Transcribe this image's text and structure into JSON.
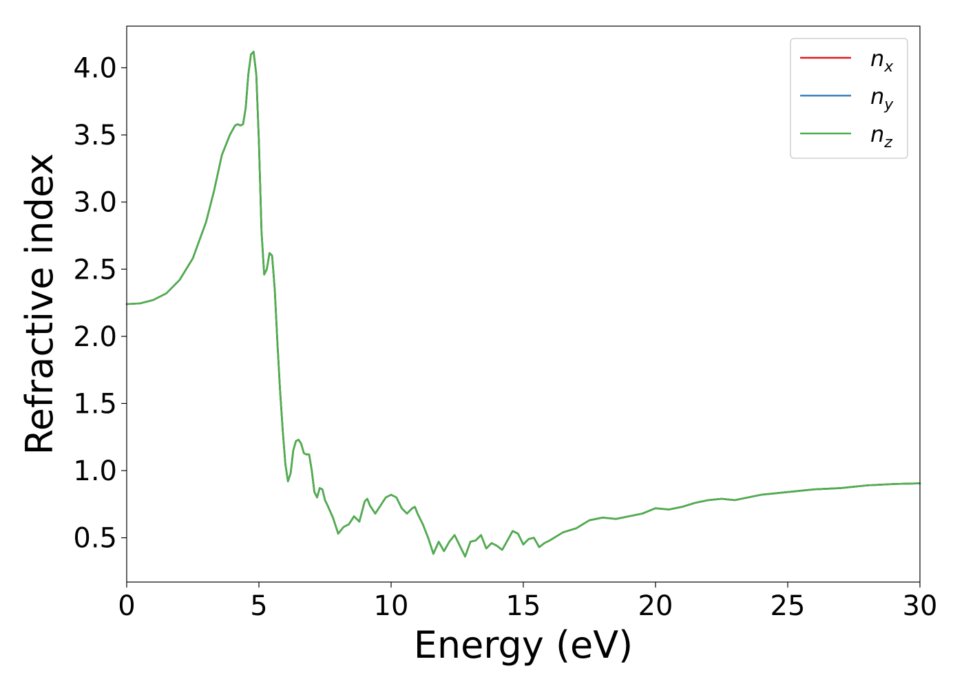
{
  "chart_data": {
    "type": "line",
    "xlabel": "Energy (eV)",
    "ylabel": "Refractive index",
    "xlim": [
      0,
      30
    ],
    "ylim": [
      0.17,
      4.31
    ],
    "xticks": [
      0,
      5,
      10,
      15,
      20,
      25,
      30
    ],
    "xtick_labels": [
      "0",
      "5",
      "10",
      "15",
      "20",
      "25",
      "30"
    ],
    "yticks": [
      0.5,
      1.0,
      1.5,
      2.0,
      2.5,
      3.0,
      3.5,
      4.0
    ],
    "ytick_labels": [
      "0.5",
      "1.0",
      "1.5",
      "2.0",
      "2.5",
      "3.0",
      "3.5",
      "4.0"
    ],
    "grid": false,
    "legend_position": "top-right",
    "series": [
      {
        "name": "n_x",
        "label_base": "n",
        "label_sub": "x",
        "color": "#e41a1c",
        "x": [
          0,
          0.5,
          1.0,
          1.5,
          2.0,
          2.5,
          3.0,
          3.3,
          3.6,
          3.9,
          4.1,
          4.2,
          4.3,
          4.4,
          4.5,
          4.6,
          4.7,
          4.8,
          4.9,
          5.0,
          5.1,
          5.2,
          5.3,
          5.4,
          5.5,
          5.6,
          5.7,
          5.8,
          5.9,
          6.0,
          6.1,
          6.2,
          6.3,
          6.4,
          6.5,
          6.6,
          6.7,
          6.8,
          6.9,
          7.0,
          7.1,
          7.2,
          7.3,
          7.4,
          7.5,
          7.6,
          7.8,
          8.0,
          8.2,
          8.4,
          8.6,
          8.8,
          9.0,
          9.1,
          9.2,
          9.4,
          9.6,
          9.8,
          10.0,
          10.2,
          10.4,
          10.6,
          10.8,
          10.9,
          11.0,
          11.2,
          11.4,
          11.6,
          11.8,
          12.0,
          12.2,
          12.4,
          12.6,
          12.8,
          13.0,
          13.2,
          13.4,
          13.6,
          13.8,
          14.0,
          14.2,
          14.4,
          14.6,
          14.8,
          15.0,
          15.2,
          15.4,
          15.6,
          15.8,
          16.0,
          16.5,
          17.0,
          17.5,
          18.0,
          18.5,
          19.0,
          19.5,
          20.0,
          20.5,
          21.0,
          21.5,
          22.0,
          22.5,
          23.0,
          23.5,
          24.0,
          25.0,
          26.0,
          27.0,
          28.0,
          29.0,
          30.0
        ],
        "y": [
          2.24,
          2.245,
          2.27,
          2.32,
          2.42,
          2.58,
          2.85,
          3.08,
          3.35,
          3.5,
          3.57,
          3.58,
          3.57,
          3.58,
          3.7,
          3.95,
          4.1,
          4.12,
          3.95,
          3.45,
          2.78,
          2.46,
          2.5,
          2.62,
          2.6,
          2.35,
          1.95,
          1.6,
          1.3,
          1.05,
          0.92,
          0.98,
          1.15,
          1.22,
          1.23,
          1.2,
          1.13,
          1.12,
          1.12,
          1.0,
          0.84,
          0.8,
          0.87,
          0.86,
          0.78,
          0.74,
          0.65,
          0.53,
          0.58,
          0.6,
          0.66,
          0.62,
          0.77,
          0.79,
          0.74,
          0.68,
          0.74,
          0.8,
          0.82,
          0.8,
          0.72,
          0.68,
          0.72,
          0.73,
          0.68,
          0.6,
          0.5,
          0.38,
          0.47,
          0.4,
          0.47,
          0.52,
          0.44,
          0.36,
          0.47,
          0.48,
          0.52,
          0.42,
          0.46,
          0.44,
          0.41,
          0.48,
          0.55,
          0.53,
          0.45,
          0.49,
          0.5,
          0.43,
          0.46,
          0.48,
          0.54,
          0.57,
          0.63,
          0.65,
          0.64,
          0.66,
          0.68,
          0.72,
          0.71,
          0.73,
          0.76,
          0.78,
          0.79,
          0.78,
          0.8,
          0.82,
          0.84,
          0.86,
          0.87,
          0.89,
          0.9,
          0.905
        ]
      },
      {
        "name": "n_y",
        "label_base": "n",
        "label_sub": "y",
        "color": "#377eb8",
        "x": [
          0,
          0.5,
          1.0,
          1.5,
          2.0,
          2.5,
          3.0,
          3.3,
          3.6,
          3.9,
          4.1,
          4.2,
          4.3,
          4.4,
          4.5,
          4.6,
          4.7,
          4.8,
          4.9,
          5.0,
          5.1,
          5.2,
          5.3,
          5.4,
          5.5,
          5.6,
          5.7,
          5.8,
          5.9,
          6.0,
          6.1,
          6.2,
          6.3,
          6.4,
          6.5,
          6.6,
          6.7,
          6.8,
          6.9,
          7.0,
          7.1,
          7.2,
          7.3,
          7.4,
          7.5,
          7.6,
          7.8,
          8.0,
          8.2,
          8.4,
          8.6,
          8.8,
          9.0,
          9.1,
          9.2,
          9.4,
          9.6,
          9.8,
          10.0,
          10.2,
          10.4,
          10.6,
          10.8,
          10.9,
          11.0,
          11.2,
          11.4,
          11.6,
          11.8,
          12.0,
          12.2,
          12.4,
          12.6,
          12.8,
          13.0,
          13.2,
          13.4,
          13.6,
          13.8,
          14.0,
          14.2,
          14.4,
          14.6,
          14.8,
          15.0,
          15.2,
          15.4,
          15.6,
          15.8,
          16.0,
          16.5,
          17.0,
          17.5,
          18.0,
          18.5,
          19.0,
          19.5,
          20.0,
          20.5,
          21.0,
          21.5,
          22.0,
          22.5,
          23.0,
          23.5,
          24.0,
          25.0,
          26.0,
          27.0,
          28.0,
          29.0,
          30.0
        ],
        "y": [
          2.24,
          2.245,
          2.27,
          2.32,
          2.42,
          2.58,
          2.85,
          3.08,
          3.35,
          3.5,
          3.57,
          3.58,
          3.57,
          3.58,
          3.7,
          3.95,
          4.1,
          4.12,
          3.95,
          3.45,
          2.78,
          2.46,
          2.5,
          2.62,
          2.6,
          2.35,
          1.95,
          1.6,
          1.3,
          1.05,
          0.92,
          0.98,
          1.15,
          1.22,
          1.23,
          1.2,
          1.13,
          1.12,
          1.12,
          1.0,
          0.84,
          0.8,
          0.87,
          0.86,
          0.78,
          0.74,
          0.65,
          0.53,
          0.58,
          0.6,
          0.66,
          0.62,
          0.77,
          0.79,
          0.74,
          0.68,
          0.74,
          0.8,
          0.82,
          0.8,
          0.72,
          0.68,
          0.72,
          0.73,
          0.68,
          0.6,
          0.5,
          0.38,
          0.47,
          0.4,
          0.47,
          0.52,
          0.44,
          0.36,
          0.47,
          0.48,
          0.52,
          0.42,
          0.46,
          0.44,
          0.41,
          0.48,
          0.55,
          0.53,
          0.45,
          0.49,
          0.5,
          0.43,
          0.46,
          0.48,
          0.54,
          0.57,
          0.63,
          0.65,
          0.64,
          0.66,
          0.68,
          0.72,
          0.71,
          0.73,
          0.76,
          0.78,
          0.79,
          0.78,
          0.8,
          0.82,
          0.84,
          0.86,
          0.87,
          0.89,
          0.9,
          0.905
        ]
      },
      {
        "name": "n_z",
        "label_base": "n",
        "label_sub": "z",
        "color": "#4daf4a",
        "x": [
          0,
          0.5,
          1.0,
          1.5,
          2.0,
          2.5,
          3.0,
          3.3,
          3.6,
          3.9,
          4.1,
          4.2,
          4.3,
          4.4,
          4.5,
          4.6,
          4.7,
          4.8,
          4.9,
          5.0,
          5.1,
          5.2,
          5.3,
          5.4,
          5.5,
          5.6,
          5.7,
          5.8,
          5.9,
          6.0,
          6.1,
          6.2,
          6.3,
          6.4,
          6.5,
          6.6,
          6.7,
          6.8,
          6.9,
          7.0,
          7.1,
          7.2,
          7.3,
          7.4,
          7.5,
          7.6,
          7.8,
          8.0,
          8.2,
          8.4,
          8.6,
          8.8,
          9.0,
          9.1,
          9.2,
          9.4,
          9.6,
          9.8,
          10.0,
          10.2,
          10.4,
          10.6,
          10.8,
          10.9,
          11.0,
          11.2,
          11.4,
          11.6,
          11.8,
          12.0,
          12.2,
          12.4,
          12.6,
          12.8,
          13.0,
          13.2,
          13.4,
          13.6,
          13.8,
          14.0,
          14.2,
          14.4,
          14.6,
          14.8,
          15.0,
          15.2,
          15.4,
          15.6,
          15.8,
          16.0,
          16.5,
          17.0,
          17.5,
          18.0,
          18.5,
          19.0,
          19.5,
          20.0,
          20.5,
          21.0,
          21.5,
          22.0,
          22.5,
          23.0,
          23.5,
          24.0,
          25.0,
          26.0,
          27.0,
          28.0,
          29.0,
          30.0
        ],
        "y": [
          2.24,
          2.245,
          2.27,
          2.32,
          2.42,
          2.58,
          2.85,
          3.08,
          3.35,
          3.5,
          3.57,
          3.58,
          3.57,
          3.58,
          3.7,
          3.95,
          4.1,
          4.12,
          3.95,
          3.45,
          2.78,
          2.46,
          2.5,
          2.62,
          2.6,
          2.35,
          1.95,
          1.6,
          1.3,
          1.05,
          0.92,
          0.98,
          1.15,
          1.22,
          1.23,
          1.2,
          1.13,
          1.12,
          1.12,
          1.0,
          0.84,
          0.8,
          0.87,
          0.86,
          0.78,
          0.74,
          0.65,
          0.53,
          0.58,
          0.6,
          0.66,
          0.62,
          0.77,
          0.79,
          0.74,
          0.68,
          0.74,
          0.8,
          0.82,
          0.8,
          0.72,
          0.68,
          0.72,
          0.73,
          0.68,
          0.6,
          0.5,
          0.38,
          0.47,
          0.4,
          0.47,
          0.52,
          0.44,
          0.36,
          0.47,
          0.48,
          0.52,
          0.42,
          0.46,
          0.44,
          0.41,
          0.48,
          0.55,
          0.53,
          0.45,
          0.49,
          0.5,
          0.43,
          0.46,
          0.48,
          0.54,
          0.57,
          0.63,
          0.65,
          0.64,
          0.66,
          0.68,
          0.72,
          0.71,
          0.73,
          0.76,
          0.78,
          0.79,
          0.78,
          0.8,
          0.82,
          0.84,
          0.86,
          0.87,
          0.89,
          0.9,
          0.905
        ]
      }
    ]
  }
}
